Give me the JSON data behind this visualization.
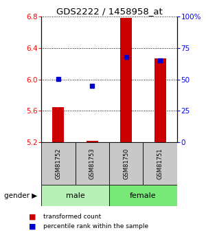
{
  "title": "GDS2222 / 1458958_at",
  "samples": [
    "GSM81752",
    "GSM81753",
    "GSM81750",
    "GSM81751"
  ],
  "gender_groups": [
    {
      "label": "male",
      "start": 0,
      "end": 1,
      "color": "#b8f0b8"
    },
    {
      "label": "female",
      "start": 2,
      "end": 3,
      "color": "#78e878"
    }
  ],
  "transformed_count": [
    5.65,
    5.22,
    6.78,
    6.27
  ],
  "percentile_rank": [
    50.5,
    45.0,
    68.0,
    65.0
  ],
  "y_min": 5.2,
  "y_max": 6.8,
  "y_ticks": [
    5.2,
    5.6,
    6.0,
    6.4,
    6.8
  ],
  "y_right_ticks": [
    0,
    25,
    50,
    75,
    100
  ],
  "y_right_labels": [
    "0",
    "25",
    "50",
    "75",
    "100%"
  ],
  "bar_color": "#cc0000",
  "dot_color": "#0000cc",
  "sample_box_color": "#c8c8c8",
  "bar_width": 0.35,
  "percentile_min": 0,
  "percentile_max": 100
}
